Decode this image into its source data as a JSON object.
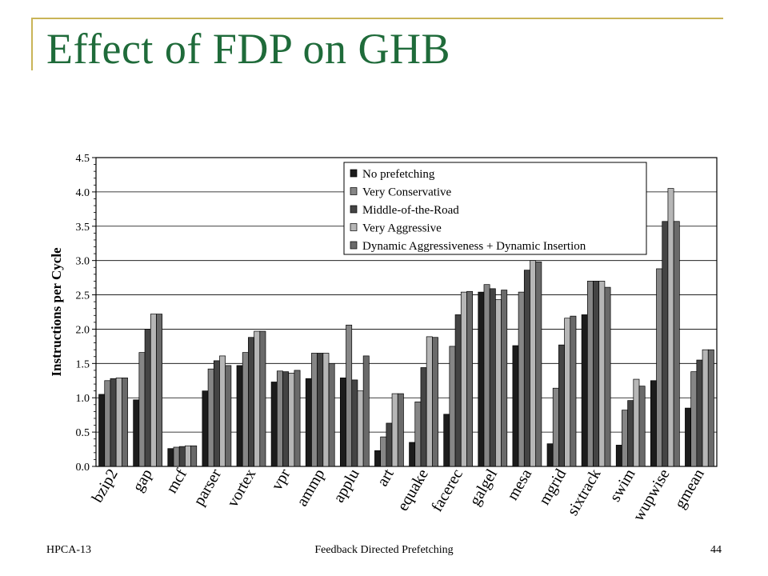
{
  "slide": {
    "title": "Effect of FDP on GHB",
    "footer_left": "HPCA-13",
    "footer_center": "Feedback Directed Prefetching",
    "page_number": "44"
  },
  "colors": {
    "title": "#1f6b3a",
    "rule": "#c9b458",
    "series": [
      "#1c1c1c",
      "#868686",
      "#444444",
      "#b6b6b6",
      "#6a6a6a"
    ]
  },
  "chart_data": {
    "type": "bar",
    "title": "",
    "xlabel": "",
    "ylabel": "Instructions per Cycle",
    "ylim": [
      0,
      4.5
    ],
    "yticks": [
      "0.0",
      "0.5",
      "1.0",
      "1.5",
      "2.0",
      "2.5",
      "3.0",
      "3.5",
      "4.0",
      "4.5"
    ],
    "grid": true,
    "legend_position": "top-right",
    "categories": [
      "bzip2",
      "gap",
      "mcf",
      "parser",
      "vortex",
      "vpr",
      "ammp",
      "applu",
      "art",
      "equake",
      "facerec",
      "galgel",
      "mesa",
      "mgrid",
      "sixtrack",
      "swim",
      "wupwise",
      "gmean"
    ],
    "series": [
      {
        "name": "No prefetching",
        "values": [
          1.05,
          0.97,
          0.26,
          1.1,
          1.47,
          1.23,
          1.28,
          1.29,
          0.23,
          0.35,
          0.76,
          2.54,
          1.76,
          0.33,
          2.21,
          0.31,
          1.25,
          0.85
        ]
      },
      {
        "name": "Very Conservative",
        "values": [
          1.25,
          1.66,
          0.28,
          1.42,
          1.66,
          1.39,
          1.65,
          2.06,
          0.43,
          0.94,
          1.75,
          2.65,
          2.54,
          1.14,
          2.7,
          0.82,
          2.88,
          1.38
        ]
      },
      {
        "name": "Middle-of-the-Road",
        "values": [
          1.28,
          2.0,
          0.29,
          1.54,
          1.88,
          1.38,
          1.65,
          1.26,
          0.63,
          1.44,
          2.21,
          2.59,
          2.86,
          1.77,
          2.7,
          0.96,
          3.57,
          1.55
        ]
      },
      {
        "name": "Very Aggressive",
        "values": [
          1.29,
          2.22,
          0.3,
          1.61,
          1.97,
          1.36,
          1.65,
          1.1,
          1.06,
          1.89,
          2.54,
          2.43,
          3.0,
          2.16,
          2.7,
          1.27,
          4.05,
          1.7
        ]
      },
      {
        "name": "Dynamic Aggressiveness + Dynamic Insertion",
        "values": [
          1.29,
          2.22,
          0.3,
          1.47,
          1.97,
          1.4,
          1.5,
          1.61,
          1.06,
          1.88,
          2.55,
          2.57,
          2.98,
          2.19,
          2.61,
          1.17,
          3.57,
          1.7
        ]
      }
    ]
  }
}
